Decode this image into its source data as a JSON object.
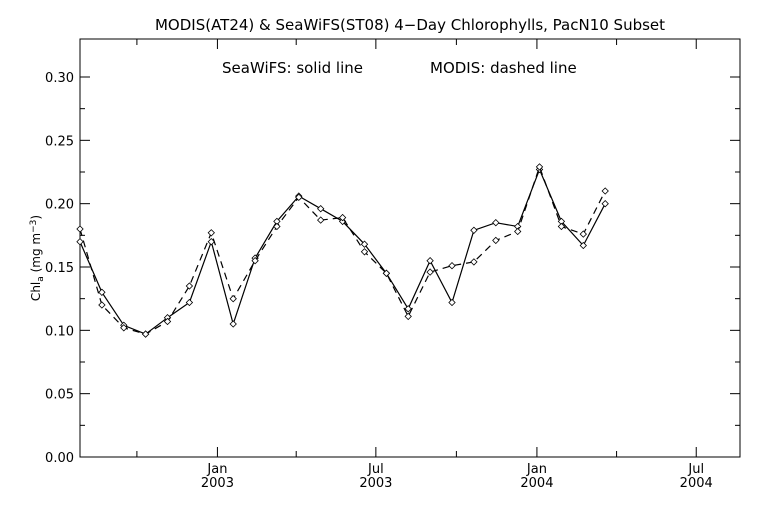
{
  "chart_data": {
    "type": "line",
    "title": "MODIS(AT24) & SeaWiFS(ST08) 4−Day Chlorophylls, PacN10 Subset",
    "annotation_left": "SeaWiFS: solid line",
    "annotation_right": "MODIS: dashed line",
    "ylabel_main": "Chl",
    "ylabel_sub": "a",
    "ylabel_unit_pre": " (mg m",
    "ylabel_unit_exp": "−3",
    "ylabel_unit_post": ")",
    "ylim": [
      0.0,
      0.33
    ],
    "yticks": [
      "0.00",
      "0.05",
      "0.10",
      "0.15",
      "0.20",
      "0.25",
      "0.30"
    ],
    "xlim": [
      "2002-07-28",
      "2004-08-20"
    ],
    "xtick_labels": [
      {
        "date": "2003-01-01",
        "month": "Jan",
        "year": "2003"
      },
      {
        "date": "2003-07-01",
        "month": "Jul",
        "year": "2003"
      },
      {
        "date": "2004-01-01",
        "month": "Jan",
        "year": "2004"
      },
      {
        "date": "2004-07-01",
        "month": "Jul",
        "year": "2004"
      }
    ],
    "minor_tick_dates": [
      "2002-10-01",
      "2003-04-01",
      "2003-10-01",
      "2004-04-01"
    ],
    "grid": false,
    "series": [
      {
        "name": "SeaWiFS",
        "style": "solid",
        "color": "#000000",
        "points": [
          [
            "2002-07-28",
            0.17
          ],
          [
            "2002-08-22",
            0.13
          ],
          [
            "2002-09-16",
            0.104
          ],
          [
            "2002-10-11",
            0.097
          ],
          [
            "2002-11-05",
            0.11
          ],
          [
            "2002-11-30",
            0.122
          ],
          [
            "2002-12-25",
            0.17
          ],
          [
            "2003-01-19",
            0.105
          ],
          [
            "2003-02-13",
            0.157
          ],
          [
            "2003-03-10",
            0.186
          ],
          [
            "2003-04-04",
            0.206
          ],
          [
            "2003-04-29",
            0.196
          ],
          [
            "2003-05-24",
            0.186
          ],
          [
            "2003-06-18",
            0.168
          ],
          [
            "2003-07-13",
            0.145
          ],
          [
            "2003-08-07",
            0.117
          ],
          [
            "2003-09-01",
            0.155
          ],
          [
            "2003-09-26",
            0.122
          ],
          [
            "2003-10-21",
            0.179
          ],
          [
            "2003-11-15",
            0.185
          ],
          [
            "2003-12-10",
            0.182
          ],
          [
            "2004-01-04",
            0.227
          ],
          [
            "2004-01-29",
            0.186
          ],
          [
            "2004-02-23",
            0.167
          ],
          [
            "2004-03-19",
            0.2
          ]
        ]
      },
      {
        "name": "MODIS",
        "style": "dashed",
        "color": "#000000",
        "points": [
          [
            "2002-07-28",
            0.18
          ],
          [
            "2002-08-22",
            0.12
          ],
          [
            "2002-09-16",
            0.102
          ],
          [
            "2002-10-11",
            0.097
          ],
          [
            "2002-11-05",
            0.107
          ],
          [
            "2002-11-30",
            0.135
          ],
          [
            "2002-12-25",
            0.177
          ],
          [
            "2003-01-19",
            0.125
          ],
          [
            "2003-02-13",
            0.155
          ],
          [
            "2003-03-10",
            0.182
          ],
          [
            "2003-04-04",
            0.205
          ],
          [
            "2003-04-29",
            0.187
          ],
          [
            "2003-05-24",
            0.189
          ],
          [
            "2003-06-18",
            0.162
          ],
          [
            "2003-07-13",
            0.145
          ],
          [
            "2003-08-07",
            0.111
          ],
          [
            "2003-09-01",
            0.146
          ],
          [
            "2003-09-26",
            0.151
          ],
          [
            "2003-10-21",
            0.154
          ],
          [
            "2003-11-15",
            0.171
          ],
          [
            "2003-12-10",
            0.178
          ],
          [
            "2004-01-04",
            0.229
          ],
          [
            "2004-01-29",
            0.182
          ],
          [
            "2004-02-23",
            0.176
          ],
          [
            "2004-03-19",
            0.21
          ]
        ]
      }
    ]
  }
}
